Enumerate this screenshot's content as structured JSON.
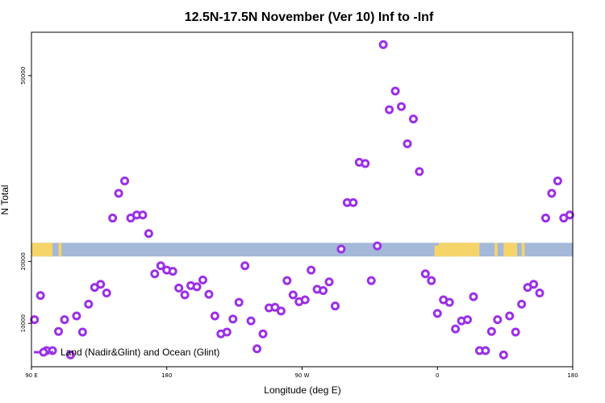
{
  "chart_data": {
    "type": "scatter",
    "title": "12.5N-17.5N November (Ver 10)   Inf to -Inf",
    "xlabel": "Longitude (deg E)",
    "ylabel": "N Total",
    "xlim": [
      90,
      450
    ],
    "ylim": [
      3000,
      57000
    ],
    "x_ticks": [
      {
        "value": 90,
        "label": "90 E"
      },
      {
        "value": 180,
        "label": "180"
      },
      {
        "value": 270,
        "label": "90 W"
      },
      {
        "value": 360,
        "label": "0"
      },
      {
        "value": 450,
        "label": "180"
      }
    ],
    "y_ticks": [
      {
        "value": 10000,
        "label": "10000"
      },
      {
        "value": 20000,
        "label": "20000"
      },
      {
        "value": 50000,
        "label": "50000"
      }
    ],
    "series": [
      {
        "name": "Land (Nadir&Glint) and Ocean (Glint)",
        "color": "#9b30e8",
        "x": [
          92,
          96,
          100,
          104,
          108,
          112,
          116,
          120,
          124,
          128,
          132,
          136,
          140,
          144,
          148,
          152,
          156,
          160,
          164,
          168,
          172,
          176,
          180,
          184,
          188,
          192,
          196,
          200,
          204,
          208,
          212,
          216,
          220,
          224,
          228,
          232,
          236,
          240,
          244,
          248,
          252,
          256,
          260,
          264,
          268,
          272,
          276,
          280,
          284,
          288,
          292,
          296,
          300,
          304,
          308,
          312,
          316,
          320,
          324,
          328,
          332,
          336,
          340,
          344,
          348,
          352,
          356,
          360,
          364,
          368,
          372,
          376,
          380,
          384,
          388,
          392,
          396,
          400,
          404,
          408,
          412,
          416,
          420,
          424,
          428,
          432,
          436,
          440,
          444,
          448
        ],
        "y": [
          10600,
          14500,
          5600,
          5600,
          8700,
          10600,
          4900,
          11200,
          8600,
          13100,
          15800,
          16300,
          14900,
          27000,
          31000,
          33000,
          27000,
          27500,
          27500,
          24500,
          18000,
          19300,
          18600,
          18400,
          15700,
          14600,
          16100,
          15900,
          17000,
          14700,
          11200,
          8300,
          8600,
          10700,
          13400,
          19300,
          10400,
          5900,
          8300,
          12500,
          12600,
          12000,
          16900,
          14600,
          13500,
          13800,
          18600,
          15500,
          15300,
          16700,
          12800,
          22000,
          29500,
          29500,
          36000,
          35800,
          16900,
          22500,
          55000,
          44500,
          47500,
          45000,
          39000,
          43000,
          34500,
          18000,
          16900,
          11600,
          13800,
          13400,
          9100,
          10400,
          10600,
          14300,
          5600,
          5600,
          8700,
          10600,
          4900,
          11200,
          8600,
          13100,
          15800,
          16300,
          14900,
          27000,
          31000,
          33000,
          27000,
          27500
        ]
      }
    ],
    "legend": {
      "position": "bottom-left",
      "label": "Land (Nadir&Glint) and Ocean (Glint)"
    },
    "grid": false,
    "land_band": {
      "y_range": [
        20800,
        23000
      ],
      "ocean_color": "#a4b8d8",
      "land_color": "#f5d46a"
    }
  }
}
